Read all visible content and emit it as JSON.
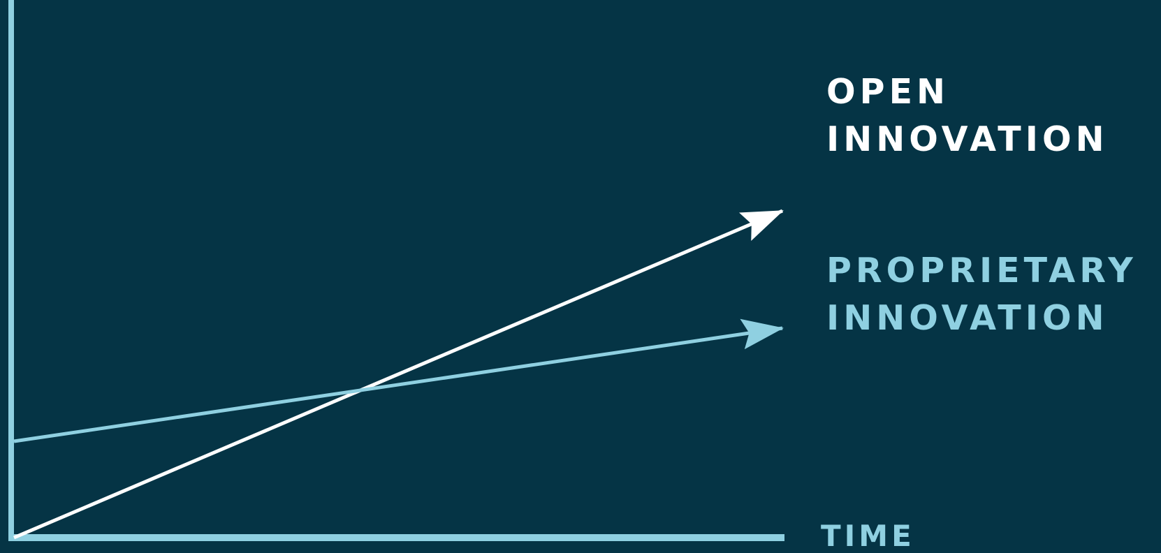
{
  "chart_data": {
    "type": "line",
    "xlabel": "TIME",
    "ylabel": "",
    "xlim": [
      0,
      100
    ],
    "ylim": [
      0,
      100
    ],
    "grid": false,
    "series": [
      {
        "name_lines": [
          "OPEN",
          "INNOVATION"
        ],
        "color": "#ffffff",
        "x": [
          0,
          100
        ],
        "y": [
          0,
          78
        ]
      },
      {
        "name_lines": [
          "PROPRIETARY",
          "INNOVATION"
        ],
        "color": "#8fd0e1",
        "x": [
          0,
          100
        ],
        "y": [
          23,
          50
        ]
      }
    ]
  },
  "colors": {
    "background": "#053445",
    "axis": "#8fd0e1"
  }
}
